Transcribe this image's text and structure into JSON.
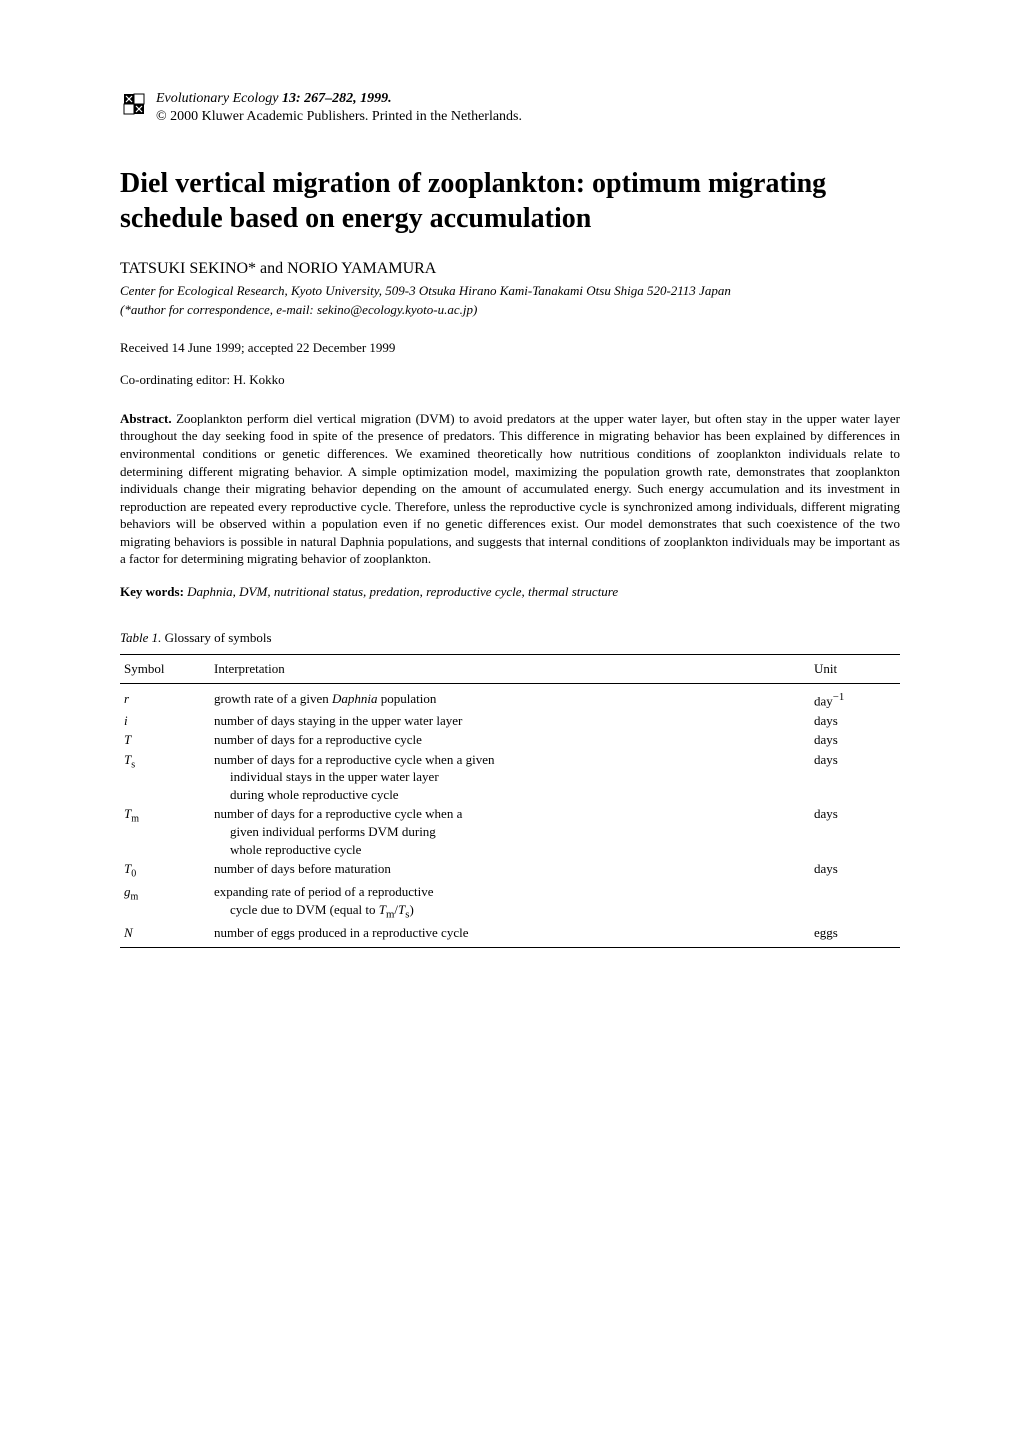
{
  "journal": {
    "name": "Evolutionary Ecology",
    "vol_pages": "13: 267–282, 1999.",
    "copyright": "© 2000 Kluwer Academic Publishers. Printed in the Netherlands."
  },
  "title": "Diel vertical migration of zooplankton: optimum migrating schedule based on energy accumulation",
  "authors": "TATSUKI SEKINO* and NORIO YAMAMURA",
  "affiliation": "Center for Ecological Research, Kyoto University, 509-3 Otsuka Hirano Kami-Tanakami Otsu Shiga 520-2113 Japan",
  "correspondence": "(*author for correspondence, e-mail: sekino@ecology.kyoto-u.ac.jp)",
  "received": "Received 14 June 1999; accepted 22 December 1999",
  "editor": "Co-ordinating editor: H. Kokko",
  "abstract": {
    "label": "Abstract.",
    "text": "Zooplankton perform diel vertical migration (DVM) to avoid predators at the upper water layer, but often stay in the upper water layer throughout the day seeking food in spite of the presence of predators. This difference in migrating behavior has been explained by differences in environmental conditions or genetic differences. We examined theoretically how nutritious conditions of zooplankton individuals relate to determining different migrating behavior. A simple optimization model, maximizing the population growth rate, demonstrates that zooplankton individuals change their migrating behavior depending on the amount of accumulated energy. Such energy accumulation and its investment in reproduction are repeated every reproductive cycle. Therefore, unless the reproductive cycle is synchronized among individuals, different migrating behaviors will be observed within a population even if no genetic differences exist. Our model demonstrates that such coexistence of the two migrating behaviors is possible in natural Daphnia populations, and suggests that internal conditions of zooplankton individuals may be important as a factor for determining migrating behavior of zooplankton."
  },
  "keywords": {
    "label": "Key words:",
    "text": "Daphnia, DVM, nutritional status, predation, reproductive cycle, thermal structure"
  },
  "table": {
    "caption_num": "Table 1.",
    "caption_text": "Glossary of symbols",
    "columns": [
      "Symbol",
      "Interpretation",
      "Unit"
    ],
    "rows": [
      {
        "sym_html": "r",
        "interp": "growth rate of a given <i>Daphnia</i> population",
        "unit": "day<sup>−1</sup>"
      },
      {
        "sym_html": "i",
        "interp": "number of days staying in the upper water layer",
        "unit": "days"
      },
      {
        "sym_html": "T",
        "interp": "number of days for a reproductive cycle",
        "unit": "days"
      },
      {
        "sym_html": "T<sub>s</sub>",
        "interp": "number of days for a reproductive cycle when a given<span class=\"indent\">individual stays in the upper water layer</span><span class=\"indent\">during whole reproductive cycle</span>",
        "unit": "days"
      },
      {
        "sym_html": "T<sub>m</sub>",
        "interp": "number of days for a reproductive cycle when a<span class=\"indent\">given individual performs DVM during</span><span class=\"indent\">whole reproductive cycle</span>",
        "unit": "days"
      },
      {
        "sym_html": "T<sub>0</sub>",
        "interp": "number of days before maturation",
        "unit": "days"
      },
      {
        "sym_html": "g<sub>m</sub>",
        "interp": "expanding rate of period of a reproductive<span class=\"indent\">cycle due to DVM (equal to <i>T</i><sub>m</sub>/<i>T</i><sub>s</sub>)</span>",
        "unit": ""
      },
      {
        "sym_html": "N",
        "interp": "number of eggs produced in a reproductive cycle",
        "unit": "eggs"
      }
    ]
  }
}
